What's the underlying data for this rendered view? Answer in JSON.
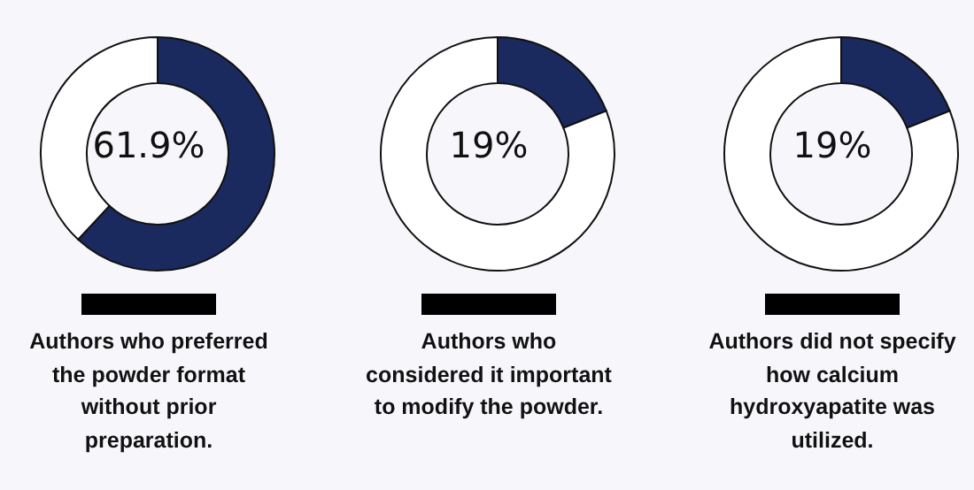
{
  "chart_data": [
    {
      "type": "donut",
      "categories": [
        null,
        null
      ],
      "values": [
        61.9,
        38.1
      ],
      "colors": [
        "#1b2a5e",
        "#ffffff"
      ],
      "annotations": [
        "61.9%"
      ],
      "title": "Authors who preferred the powder format without prior preparation."
    },
    {
      "type": "donut",
      "categories": [
        null,
        null
      ],
      "values": [
        19,
        81
      ],
      "colors": [
        "#1b2a5e",
        "#ffffff"
      ],
      "annotations": [
        "19%"
      ],
      "title": "Authors who considered it important to modify the powder."
    },
    {
      "type": "donut",
      "categories": [
        null,
        null
      ],
      "values": [
        19,
        81
      ],
      "colors": [
        "#1b2a5e",
        "#ffffff"
      ],
      "annotations": [
        "19%"
      ],
      "title": "Authors did not specify how calcium hydroxyapatite was utilized."
    }
  ]
}
